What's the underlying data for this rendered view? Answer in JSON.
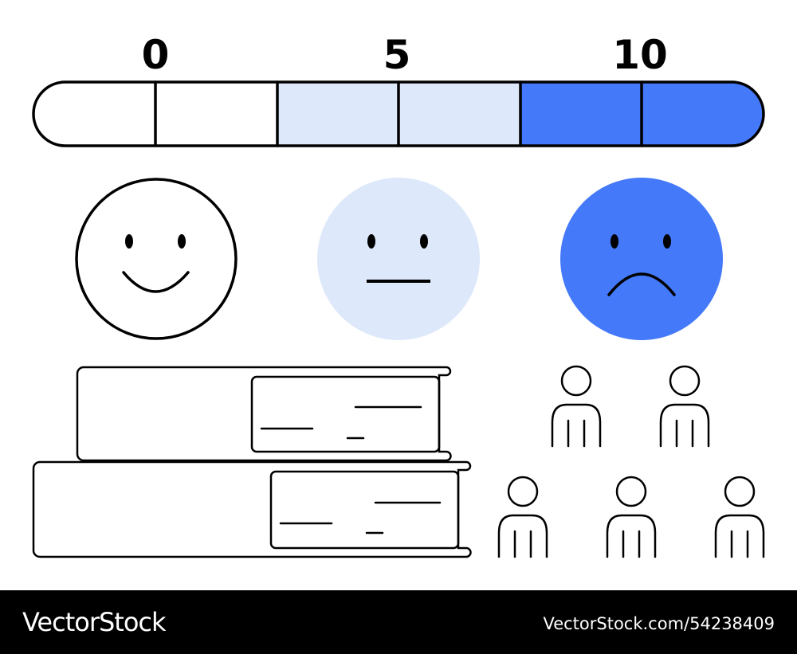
{
  "scale": {
    "labels": [
      "0",
      "5",
      "10"
    ]
  },
  "footer": {
    "brand": "VectorStock",
    "id": "VectorStock.com/54238409"
  }
}
